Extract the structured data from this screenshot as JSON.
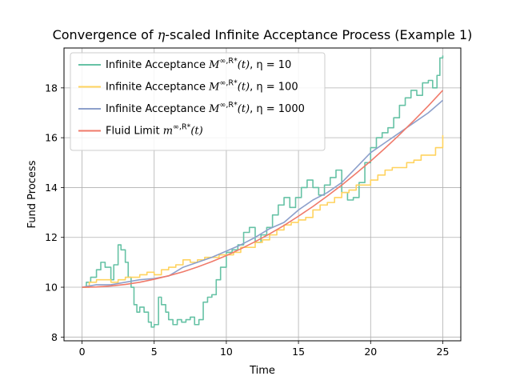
{
  "chart_data": {
    "type": "line",
    "title_parts": [
      "Convergence of ",
      "η",
      "-scaled Infinite Acceptance Process (Example 1)"
    ],
    "xlabel": "Time",
    "ylabel": "Fund Process",
    "xlim": [
      -1.25,
      26.25
    ],
    "ylim": [
      7.85,
      19.6
    ],
    "xticks": [
      0,
      5,
      10,
      15,
      20,
      25
    ],
    "yticks": [
      8,
      10,
      12,
      14,
      16,
      18
    ],
    "grid": true,
    "legend_position": "top-left",
    "series": [
      {
        "name": "Infinite Acceptance M^{∞,R*}(t), η = 10",
        "legend_prefix": "Infinite Acceptance ",
        "legend_suffix": ",  η = 10",
        "color": "#66c2a5",
        "step": true,
        "x": [
          0,
          0.3,
          0.6,
          1.0,
          1.3,
          1.6,
          2.0,
          2.2,
          2.5,
          2.7,
          3.0,
          3.2,
          3.4,
          3.6,
          3.8,
          4.0,
          4.3,
          4.6,
          4.8,
          5.0,
          5.3,
          5.5,
          5.8,
          6.0,
          6.3,
          6.6,
          6.9,
          7.2,
          7.5,
          7.8,
          8.1,
          8.4,
          8.7,
          9.0,
          9.3,
          9.6,
          10.0,
          10.4,
          10.8,
          11.2,
          11.6,
          12.0,
          12.4,
          12.8,
          13.2,
          13.6,
          14.0,
          14.4,
          14.8,
          15.2,
          15.6,
          16.0,
          16.4,
          16.8,
          17.2,
          17.6,
          18.0,
          18.4,
          18.8,
          19.2,
          19.6,
          20.0,
          20.4,
          20.8,
          21.2,
          21.6,
          22.0,
          22.4,
          22.8,
          23.2,
          23.6,
          24.0,
          24.3,
          24.6,
          24.8,
          25.0
        ],
        "y": [
          10.0,
          10.2,
          10.4,
          10.7,
          11.0,
          10.8,
          10.3,
          10.9,
          11.7,
          11.5,
          11.0,
          10.4,
          10.0,
          9.3,
          9.0,
          9.2,
          9.0,
          8.6,
          8.4,
          8.5,
          9.6,
          9.3,
          9.0,
          8.7,
          8.5,
          8.7,
          8.6,
          8.7,
          8.8,
          8.5,
          8.7,
          9.4,
          9.6,
          9.7,
          10.3,
          10.8,
          11.4,
          11.5,
          11.7,
          12.2,
          12.4,
          11.8,
          12.1,
          12.4,
          12.9,
          13.3,
          13.6,
          13.2,
          13.6,
          14.0,
          14.3,
          14.0,
          13.7,
          14.1,
          14.4,
          14.7,
          13.8,
          13.5,
          13.6,
          14.2,
          15.0,
          15.6,
          16.0,
          16.2,
          16.4,
          16.8,
          17.3,
          17.6,
          17.9,
          17.7,
          18.2,
          18.3,
          18.0,
          18.5,
          19.2,
          19.3
        ]
      },
      {
        "name": "Infinite Acceptance M^{∞,R*}(t), η = 100",
        "legend_prefix": "Infinite Acceptance ",
        "legend_suffix": ",  η = 100",
        "color": "#ffd35f",
        "step": true,
        "x": [
          0,
          0.5,
          1.0,
          1.5,
          2.0,
          2.5,
          3.0,
          3.5,
          4.0,
          4.5,
          5.0,
          5.5,
          6.0,
          6.5,
          7.0,
          7.5,
          8.0,
          8.5,
          9.0,
          9.5,
          10.0,
          10.5,
          11.0,
          11.5,
          12.0,
          12.5,
          13.0,
          13.5,
          14.0,
          14.5,
          15.0,
          15.5,
          16.0,
          16.5,
          17.0,
          17.5,
          18.0,
          18.5,
          19.0,
          19.5,
          20.0,
          20.5,
          21.0,
          21.5,
          22.0,
          22.5,
          23.0,
          23.5,
          24.0,
          24.5,
          25.0
        ],
        "y": [
          10.0,
          10.2,
          10.3,
          10.3,
          10.2,
          10.3,
          10.4,
          10.4,
          10.5,
          10.6,
          10.5,
          10.7,
          10.8,
          10.9,
          11.1,
          11.0,
          11.1,
          11.2,
          11.2,
          11.3,
          11.3,
          11.4,
          11.6,
          11.6,
          11.8,
          11.9,
          12.1,
          12.3,
          12.5,
          12.6,
          12.7,
          12.8,
          13.1,
          13.3,
          13.4,
          13.6,
          13.8,
          13.9,
          14.1,
          14.1,
          14.3,
          14.5,
          14.7,
          14.8,
          14.8,
          15.0,
          15.1,
          15.3,
          15.3,
          15.6,
          16.1
        ]
      },
      {
        "name": "Infinite Acceptance M^{∞,R*}(t), η = 1000",
        "legend_prefix": "Infinite Acceptance ",
        "legend_suffix": ",  η = 1000",
        "color": "#8da0cb",
        "step": false,
        "x": [
          0,
          1,
          2,
          3,
          4,
          5,
          6,
          7,
          8,
          9,
          10,
          11,
          12,
          13,
          14,
          15,
          16,
          17,
          18,
          19,
          20,
          21,
          22,
          23,
          24,
          25
        ],
        "y": [
          10.0,
          10.1,
          10.1,
          10.2,
          10.3,
          10.35,
          10.45,
          10.8,
          11.0,
          11.2,
          11.45,
          11.7,
          12.0,
          12.35,
          12.6,
          13.1,
          13.5,
          13.8,
          14.2,
          14.8,
          15.4,
          15.8,
          16.2,
          16.6,
          17.0,
          17.5
        ]
      },
      {
        "name": "Fluid Limit m^{∞,R*}(t)",
        "legend_prefix": "Fluid Limit ",
        "legend_suffix": "",
        "color": "#f07a6a",
        "step": false,
        "x": [
          0,
          1,
          2,
          3,
          4,
          5,
          6,
          7,
          8,
          9,
          10,
          11,
          12,
          13,
          14,
          15,
          16,
          17,
          18,
          19,
          20,
          21,
          22,
          23,
          24,
          25
        ],
        "y": [
          10.0,
          10.01,
          10.05,
          10.11,
          10.2,
          10.32,
          10.46,
          10.62,
          10.81,
          11.03,
          11.27,
          11.54,
          11.83,
          12.14,
          12.48,
          12.85,
          13.24,
          13.66,
          14.1,
          14.57,
          15.06,
          15.58,
          16.12,
          16.69,
          17.28,
          17.9
        ]
      }
    ]
  }
}
